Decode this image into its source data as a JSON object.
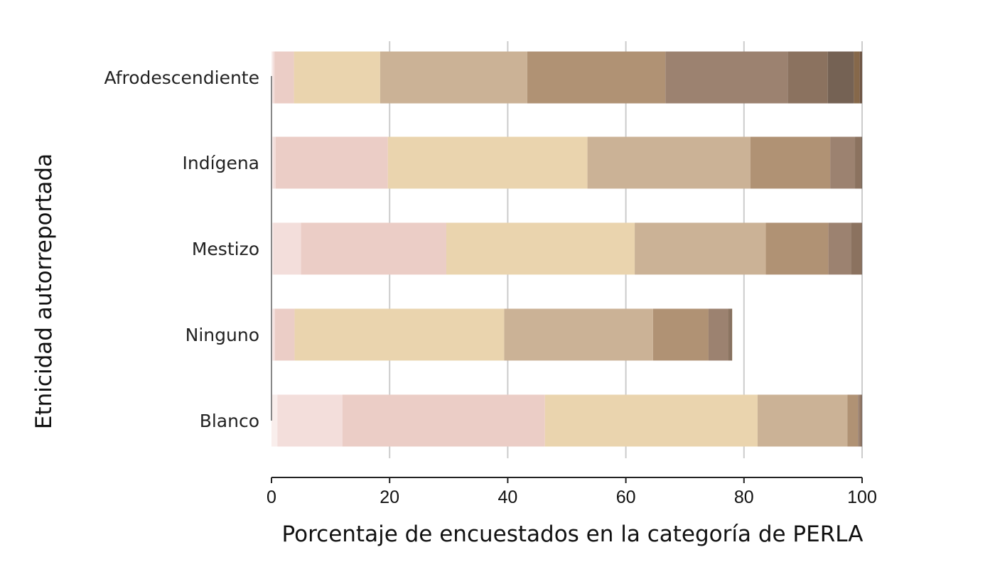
{
  "chart_data": {
    "type": "bar",
    "orientation": "horizontal",
    "stacked": true,
    "title": "",
    "xlabel": "Porcentaje de encuestados en la categoría de PERLA",
    "ylabel": "Etnicidad autorreportada",
    "xlim": [
      0,
      100
    ],
    "xticks": [
      "0",
      "20",
      "40",
      "60",
      "80",
      "100"
    ],
    "grid": "vertical",
    "legend": "none",
    "categories": [
      "Afrodescendiente",
      "Indígena",
      "Mestizo",
      "Ninguno",
      "Blanco"
    ],
    "series": [
      {
        "color": "#f9eeec",
        "values": [
          0.2,
          0.3,
          0.3,
          0.3,
          1.0
        ]
      },
      {
        "color": "#f3dedb",
        "values": [
          0.3,
          0.4,
          4.7,
          0.3,
          11.0
        ]
      },
      {
        "color": "#ebcdc6",
        "values": [
          3.3,
          19.0,
          24.6,
          3.3,
          34.3
        ]
      },
      {
        "color": "#ead4ae",
        "values": [
          14.6,
          33.8,
          31.9,
          35.5,
          36.0
        ]
      },
      {
        "color": "#cbb296",
        "values": [
          24.9,
          27.6,
          22.2,
          25.2,
          15.2
        ]
      },
      {
        "color": "#b09274",
        "values": [
          23.4,
          13.5,
          10.6,
          9.4,
          1.8
        ]
      },
      {
        "color": "#9c8270",
        "values": [
          20.7,
          4.2,
          3.8,
          3.3,
          0.4
        ]
      },
      {
        "color": "#8b725f",
        "values": [
          6.8,
          1.0,
          1.8,
          0.4,
          0.2
        ]
      },
      {
        "color": "#756254",
        "values": [
          4.4,
          0.2,
          0.1,
          0.2,
          0.1
        ]
      },
      {
        "color": "#86684a",
        "values": [
          1.0,
          0.0,
          0.0,
          0.1,
          0.0
        ]
      },
      {
        "color": "#6e5645",
        "values": [
          0.4,
          0.0,
          0.0,
          0.0,
          0.0
        ]
      }
    ],
    "colors": {
      "grid": "#cccccc",
      "axis": "#222222",
      "baseline": "#888888"
    }
  }
}
